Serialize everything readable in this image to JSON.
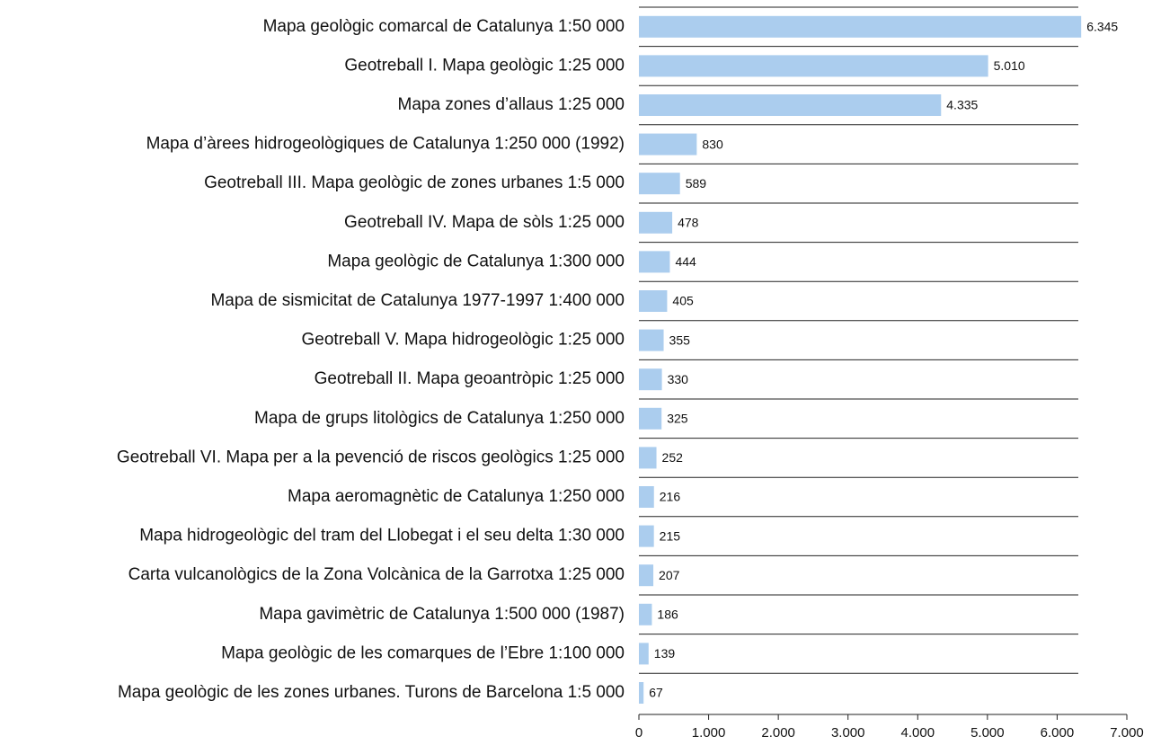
{
  "chart_data": {
    "type": "bar",
    "orientation": "horizontal",
    "categories": [
      "Mapa geològic comarcal de Catalunya 1:50 000",
      "Geotreball I. Mapa geològic 1:25 000",
      "Mapa zones d’allaus 1:25 000",
      "Mapa d’àrees hidrogeològiques de Catalunya 1:250 000 (1992)",
      "Geotreball III. Mapa geològic de zones urbanes 1:5 000",
      "Geotreball IV. Mapa de sòls 1:25 000",
      "Mapa geològic de Catalunya 1:300 000",
      "Mapa de sismicitat de Catalunya 1977-1997 1:400 000",
      "Geotreball V. Mapa hidrogeològic 1:25 000",
      "Geotreball II. Mapa geoantròpic 1:25 000",
      "Mapa de grups litològics de Catalunya 1:250 000",
      "Geotreball VI. Mapa per a la pevenció de riscos geològics 1:25 000",
      "Mapa aeromagnètic de Catalunya 1:250 000",
      "Mapa hidrogeològic del tram del Llobegat i el seu delta 1:30 000",
      "Carta vulcanològics de la Zona Volcànica de la Garrotxa 1:25 000",
      "Mapa gavimètric de Catalunya 1:500 000 (1987)",
      "Mapa geològic de les comarques de l’Ebre 1:100 000",
      "Mapa geològic de les zones urbanes. Turons de Barcelona 1:5 000"
    ],
    "values": [
      6345,
      5010,
      4335,
      830,
      589,
      478,
      444,
      405,
      355,
      330,
      325,
      252,
      216,
      215,
      207,
      186,
      139,
      67
    ],
    "value_labels": [
      "6.345",
      "5.010",
      "4.335",
      "830",
      "589",
      "478",
      "444",
      "405",
      "355",
      "330",
      "325",
      "252",
      "216",
      "215",
      "207",
      "186",
      "139",
      "67"
    ],
    "color": "#abcdee",
    "xlim": [
      0,
      7000
    ],
    "xticks": [
      0,
      {
        "value": 1000,
        "label": "1.000"
      },
      {
        "value": 2000,
        "label": "2.000"
      },
      {
        "value": 3000,
        "label": "3.000"
      },
      {
        "value": 4000,
        "label": "4.000"
      },
      {
        "value": 5000,
        "label": "5.000"
      },
      {
        "value": 6000,
        "label": "6.000"
      },
      {
        "value": 7000,
        "label": "7.000"
      }
    ]
  }
}
